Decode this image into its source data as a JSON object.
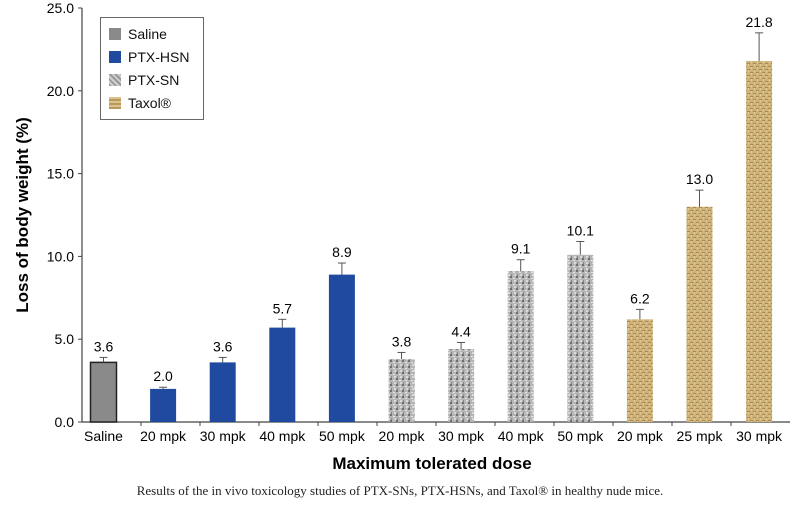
{
  "chart_data": {
    "type": "bar",
    "title": "",
    "xlabel": "Maximum tolerated dose",
    "ylabel": "Loss of body weight (%)",
    "ylim": [
      0,
      25
    ],
    "yticks": [
      "0.0",
      "5.0",
      "10.0",
      "15.0",
      "20.0",
      "25.0"
    ],
    "grid": false,
    "legend_position": "top-left",
    "legend": [
      {
        "name": "Saline",
        "color": "#8a8a8a"
      },
      {
        "name": "PTX-HSN",
        "color": "#1f4aa0"
      },
      {
        "name": "PTX-SN",
        "color": "#b8b8b8"
      },
      {
        "name": "Taxol®",
        "color": "#c8a868"
      }
    ],
    "categories": [
      "Saline",
      "20 mpk",
      "30 mpk",
      "40 mpk",
      "50 mpk",
      "20 mpk",
      "30 mpk",
      "40 mpk",
      "50 mpk",
      "20 mpk",
      "25 mpk",
      "30 mpk"
    ],
    "groups": [
      "Saline",
      "PTX-HSN",
      "PTX-HSN",
      "PTX-HSN",
      "PTX-HSN",
      "PTX-SN",
      "PTX-SN",
      "PTX-SN",
      "PTX-SN",
      "Taxol®",
      "Taxol®",
      "Taxol®"
    ],
    "values": [
      3.6,
      2.0,
      3.6,
      5.7,
      8.9,
      3.8,
      4.4,
      9.1,
      10.1,
      6.2,
      13.0,
      21.8
    ],
    "value_labels": [
      "3.6",
      "2.0",
      "3.6",
      "5.7",
      "8.9",
      "3.8",
      "4.4",
      "9.1",
      "10.1",
      "6.2",
      "13.0",
      "21.8"
    ],
    "errors": [
      0.3,
      0.1,
      0.3,
      0.5,
      0.7,
      0.4,
      0.4,
      0.7,
      0.8,
      0.6,
      1.0,
      1.7
    ]
  },
  "caption": "Results of the in vivo toxicology studies of PTX-SNs, PTX-HSNs, and Taxol® in healthy nude mice."
}
